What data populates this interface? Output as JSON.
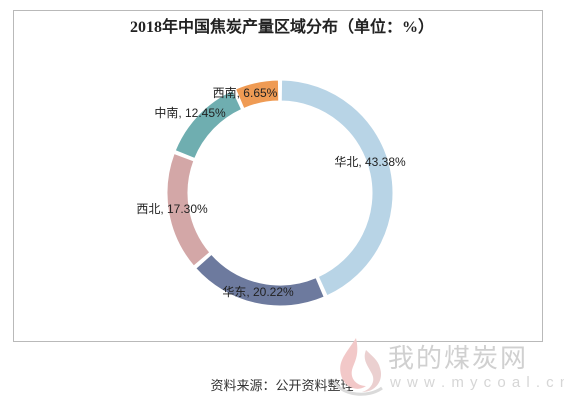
{
  "chart_data": {
    "type": "pie",
    "title": "2018年中国焦炭产量区域分布（单位：%）",
    "slices": [
      {
        "label": "华北, 43.38%",
        "value": 43.38,
        "color": "#b8d4e6"
      },
      {
        "label": "华东, 20.22%",
        "value": 20.22,
        "color": "#6d7a9e"
      },
      {
        "label": "西北, 17.30%",
        "value": 17.3,
        "color": "#d3a7a7"
      },
      {
        "label": "中南, 12.45%",
        "value": 12.45,
        "color": "#6faeb0"
      },
      {
        "label": "西南, 6.65%",
        "value": 6.65,
        "color": "#ef9b54"
      }
    ],
    "donut": true,
    "legend": "none"
  },
  "source": "资料来源：公开资料整理",
  "watermark": {
    "name": "我的煤炭网",
    "url": "w w w . m y c o a l . c n"
  }
}
